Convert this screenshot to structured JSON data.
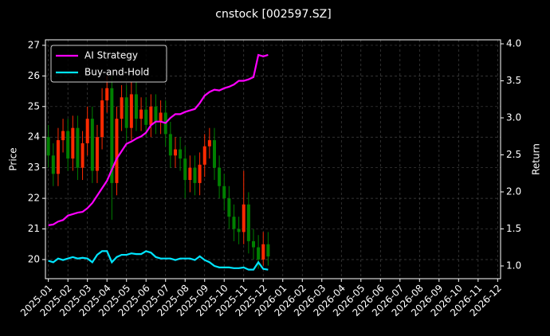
{
  "chart_data": {
    "type": "candlestick",
    "title": "cnstock [002597.SZ]",
    "ylabel": "Price",
    "y2label": "Return",
    "x": [
      0,
      0.25,
      0.5,
      0.75,
      1,
      1.25,
      1.5,
      1.75,
      2,
      2.25,
      2.5,
      2.75,
      3,
      3.25,
      3.5,
      3.75,
      4,
      4.25,
      4.5,
      4.75,
      5,
      5.25,
      5.5,
      5.75,
      6,
      6.25,
      6.5,
      6.75,
      7,
      7.25,
      7.5,
      7.75,
      8,
      8.25,
      8.5,
      8.75,
      9,
      9.25,
      9.5,
      9.75,
      10,
      10.25,
      10.5,
      10.75,
      11,
      11.25
    ],
    "open": [
      24.0,
      23.4,
      22.8,
      23.9,
      24.2,
      23.3,
      24.3,
      23.0,
      23.8,
      24.6,
      22.9,
      24.0,
      25.2,
      25.6,
      22.5,
      24.6,
      25.3,
      24.3,
      25.4,
      24.6,
      24.9,
      24.4,
      25.0,
      24.5,
      24.8,
      24.1,
      23.4,
      23.6,
      23.3,
      22.6,
      23.0,
      22.5,
      23.1,
      23.7,
      23.9,
      23.0,
      22.4,
      22.0,
      21.4,
      21.0,
      20.9,
      21.8,
      20.6,
      20.4,
      20.0,
      20.5
    ],
    "high": [
      24.4,
      23.8,
      24.3,
      24.6,
      24.6,
      24.7,
      24.7,
      24.2,
      25.0,
      25.0,
      24.4,
      25.6,
      26.0,
      26.0,
      25.0,
      25.7,
      25.7,
      25.8,
      25.8,
      25.3,
      25.3,
      25.4,
      25.4,
      25.2,
      25.2,
      24.5,
      24.0,
      24.0,
      23.7,
      23.4,
      23.4,
      23.5,
      24.1,
      24.3,
      24.3,
      23.4,
      22.8,
      22.4,
      21.8,
      21.4,
      22.9,
      22.2,
      21.0,
      20.8,
      20.9,
      20.9
    ],
    "low": [
      23.0,
      22.4,
      22.4,
      23.5,
      22.9,
      22.9,
      22.6,
      22.6,
      23.4,
      22.5,
      22.5,
      23.6,
      24.8,
      21.3,
      22.1,
      24.2,
      23.9,
      23.9,
      24.2,
      24.2,
      24.0,
      24.0,
      24.1,
      24.1,
      23.7,
      23.0,
      23.0,
      22.9,
      22.0,
      22.2,
      22.1,
      22.1,
      22.7,
      23.3,
      22.6,
      22.0,
      21.6,
      21.0,
      20.6,
      20.5,
      20.5,
      20.2,
      20.0,
      19.7,
      19.8,
      19.8
    ],
    "close": [
      23.4,
      22.8,
      23.9,
      24.2,
      23.3,
      24.3,
      23.0,
      23.8,
      24.6,
      22.9,
      24.0,
      25.2,
      25.6,
      22.5,
      24.6,
      25.3,
      24.3,
      25.4,
      24.6,
      24.9,
      24.4,
      25.0,
      24.5,
      24.8,
      24.1,
      23.4,
      23.6,
      23.3,
      22.6,
      23.0,
      22.5,
      23.1,
      23.7,
      23.9,
      23.0,
      22.4,
      22.0,
      21.4,
      21.0,
      20.9,
      21.8,
      20.6,
      20.4,
      20.0,
      20.5,
      20.1
    ],
    "up_color": "#ff2a00",
    "down_color": "#008000",
    "series": [
      {
        "name": "AI Strategy",
        "color": "#ff00ff",
        "axis": "y2",
        "values": [
          1.55,
          1.56,
          1.6,
          1.62,
          1.68,
          1.7,
          1.72,
          1.73,
          1.78,
          1.85,
          1.95,
          2.05,
          2.15,
          2.3,
          2.45,
          2.55,
          2.65,
          2.68,
          2.72,
          2.75,
          2.8,
          2.9,
          2.95,
          2.95,
          2.93,
          3.0,
          3.05,
          3.05,
          3.08,
          3.1,
          3.12,
          3.2,
          3.3,
          3.35,
          3.38,
          3.37,
          3.4,
          3.42,
          3.45,
          3.5,
          3.5,
          3.52,
          3.55,
          3.85,
          3.83,
          3.85
        ]
      },
      {
        "name": "Buy-and-Hold",
        "color": "#00e5ff",
        "axis": "y2",
        "values": [
          1.07,
          1.05,
          1.1,
          1.08,
          1.1,
          1.12,
          1.1,
          1.11,
          1.1,
          1.05,
          1.15,
          1.2,
          1.2,
          1.05,
          1.12,
          1.15,
          1.15,
          1.17,
          1.16,
          1.16,
          1.2,
          1.18,
          1.12,
          1.1,
          1.1,
          1.1,
          1.08,
          1.1,
          1.1,
          1.1,
          1.08,
          1.13,
          1.08,
          1.05,
          1.0,
          0.98,
          0.98,
          0.98,
          0.97,
          0.97,
          0.98,
          0.95,
          0.95,
          1.05,
          0.96,
          0.95
        ]
      }
    ],
    "xlim": [
      -0.15,
      23.15
    ],
    "xticks": [
      {
        "value": 0,
        "label": "2025-01"
      },
      {
        "value": 1,
        "label": "2025-02"
      },
      {
        "value": 2,
        "label": "2025-03"
      },
      {
        "value": 3,
        "label": "2025-04"
      },
      {
        "value": 4,
        "label": "2025-05"
      },
      {
        "value": 5,
        "label": "2025-06"
      },
      {
        "value": 6,
        "label": "2025-07"
      },
      {
        "value": 7,
        "label": "2025-08"
      },
      {
        "value": 8,
        "label": "2025-09"
      },
      {
        "value": 9,
        "label": "2025-10"
      },
      {
        "value": 10,
        "label": "2025-11"
      },
      {
        "value": 11,
        "label": "2025-12"
      },
      {
        "value": 12,
        "label": "2026-01"
      },
      {
        "value": 13,
        "label": "2026-02"
      },
      {
        "value": 14,
        "label": "2026-03"
      },
      {
        "value": 15,
        "label": "2026-04"
      },
      {
        "value": 16,
        "label": "2026-05"
      },
      {
        "value": 17,
        "label": "2026-06"
      },
      {
        "value": 18,
        "label": "2026-07"
      },
      {
        "value": 19,
        "label": "2026-08"
      },
      {
        "value": 20,
        "label": "2026-09"
      },
      {
        "value": 21,
        "label": "2026-10"
      },
      {
        "value": 22,
        "label": "2026-11"
      },
      {
        "value": 23,
        "label": "2026-12"
      }
    ],
    "ylim": [
      19.375,
      27.18
    ],
    "yticks": [
      20,
      21,
      22,
      23,
      24,
      25,
      26,
      27
    ],
    "y2lim": [
      0.828,
      4.054
    ],
    "y2ticks": [
      {
        "value": 1,
        "label": "1.0"
      },
      1.5,
      {
        "value": 2,
        "label": "2.0"
      },
      2.5,
      {
        "value": 3,
        "label": "3.0"
      },
      3.5,
      {
        "value": 4,
        "label": "4.0"
      }
    ],
    "grid": true,
    "legend": "upper left"
  }
}
